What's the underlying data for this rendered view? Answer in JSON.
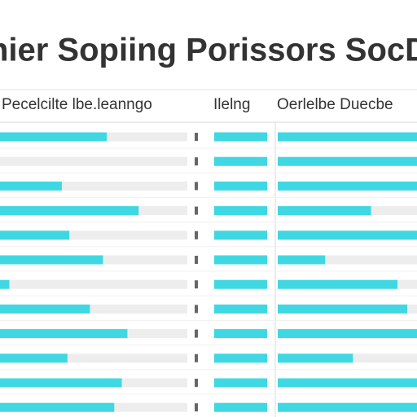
{
  "title": "nier Sopiing Porissors SocD",
  "chart_data": [
    {
      "type": "bar",
      "title": "Pecelcilte lbe.leanngo",
      "color": "#3fd8e2",
      "xlim": [
        0,
        100
      ],
      "categories": [
        null,
        null,
        null,
        null,
        null,
        null,
        null,
        null,
        null,
        null,
        null,
        null
      ],
      "values": [
        57,
        0,
        33,
        74,
        37,
        55,
        5,
        48,
        68,
        36,
        65,
        61
      ]
    },
    {
      "type": "bar",
      "title": "Ilelng",
      "color": "#3fd8e2",
      "xlim": [
        0,
        100
      ],
      "categories": [
        null,
        null,
        null,
        null,
        null,
        null,
        null,
        null,
        null,
        null,
        null,
        null
      ],
      "values": [
        100,
        100,
        100,
        100,
        100,
        100,
        100,
        100,
        100,
        100,
        100,
        100
      ]
    },
    {
      "type": "bar",
      "title": "Oerlelbe Duecbe",
      "color": "#3fd8e2",
      "xlim": [
        0,
        100
      ],
      "categories": [
        null,
        null,
        null,
        null,
        null,
        null,
        null,
        null,
        null,
        null,
        null,
        null
      ],
      "values": [
        100,
        100,
        100,
        67,
        100,
        34,
        86,
        93,
        100,
        54,
        100,
        100
      ]
    }
  ]
}
